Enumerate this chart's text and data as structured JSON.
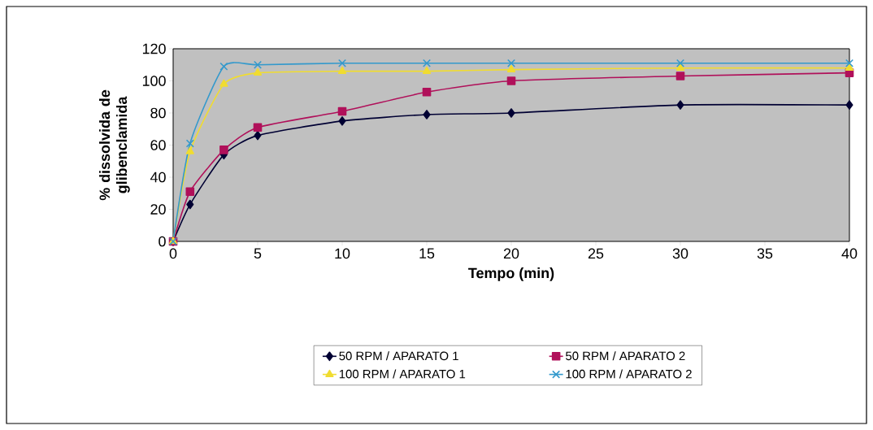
{
  "chart_data": {
    "type": "line",
    "xlabel": "Tempo (min)",
    "ylabel": "% dissolvida de glibenclamida",
    "x": [
      0,
      1,
      3,
      5,
      10,
      15,
      20,
      30,
      40
    ],
    "xlim": [
      0,
      40
    ],
    "xticks": [
      0,
      5,
      10,
      15,
      20,
      25,
      30,
      35,
      40
    ],
    "ylim": [
      0,
      120
    ],
    "yticks": [
      0,
      20,
      40,
      60,
      80,
      100,
      120
    ],
    "grid": false,
    "legend": "bottom",
    "series": [
      {
        "name": "50 RPM / APARATO 1",
        "color": "#000033",
        "marker": "diamond",
        "values": [
          0,
          23,
          54,
          66,
          75,
          79,
          80,
          85,
          85
        ]
      },
      {
        "name": "50 RPM / APARATO 2",
        "color": "#b0105a",
        "marker": "square",
        "values": [
          0,
          31,
          57,
          71,
          81,
          93,
          100,
          103,
          105
        ]
      },
      {
        "name": "100 RPM / APARATO 1",
        "color": "#f0dc30",
        "marker": "triangle",
        "values": [
          0,
          56,
          98,
          105,
          106,
          106,
          107,
          108,
          108
        ]
      },
      {
        "name": "100 RPM / APARATO 2",
        "color": "#3399cc",
        "marker": "cross",
        "values": [
          0,
          61,
          109,
          110,
          111,
          111,
          111,
          111,
          111
        ]
      }
    ]
  }
}
